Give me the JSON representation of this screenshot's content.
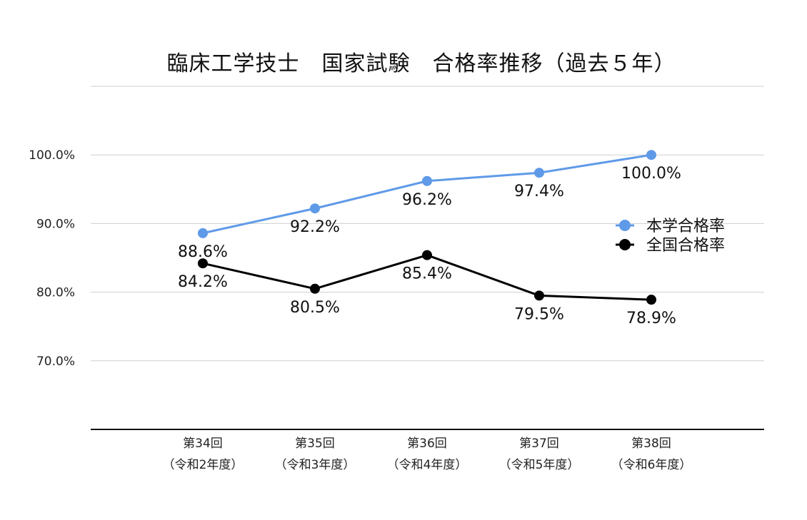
{
  "chart_data": {
    "type": "line",
    "title": "臨床工学技士　国家試験　合格率推移（過去５年）",
    "xlabel": "",
    "ylabel": "",
    "categories": [
      [
        "第34回",
        "（令和2年度）"
      ],
      [
        "第35回",
        "（令和3年度）"
      ],
      [
        "第36回",
        "（令和4年度）"
      ],
      [
        "第37回",
        "（令和5年度）"
      ],
      [
        "第38回",
        "（令和6年度）"
      ]
    ],
    "yticks": [
      "70.0%",
      "80.0%",
      "90.0%",
      "100.0%"
    ],
    "ylim": [
      60,
      110
    ],
    "grid": true,
    "legend_position": "right",
    "series": [
      {
        "name": "本学合格率",
        "color": "#5f9ae8",
        "values": [
          88.6,
          92.2,
          96.2,
          97.4,
          100.0
        ],
        "labels": [
          "88.6%",
          "92.2%",
          "96.2%",
          "97.4%",
          "100.0%"
        ]
      },
      {
        "name": "全国合格率",
        "color": "#000000",
        "values": [
          84.2,
          80.5,
          85.4,
          79.5,
          78.9
        ],
        "labels": [
          "84.2%",
          "80.5%",
          "85.4%",
          "79.5%",
          "78.9%"
        ]
      }
    ]
  }
}
